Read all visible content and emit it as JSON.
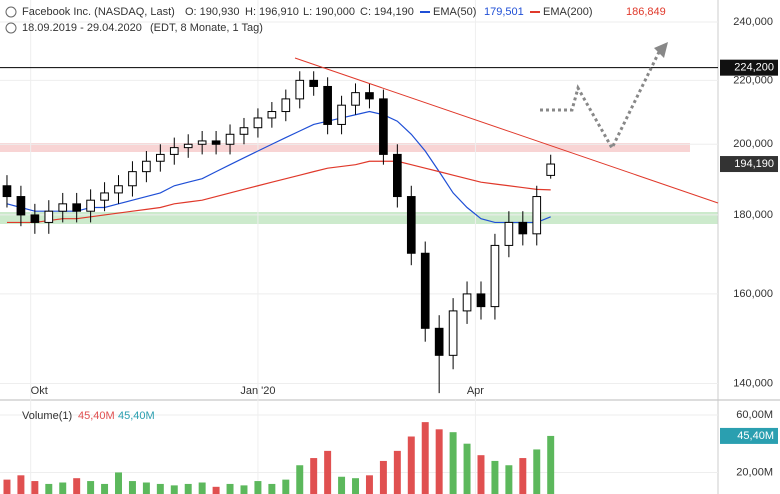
{
  "chart_data": {
    "type": "candlestick",
    "title": "Facebook Inc. (NASDAQ, Last)",
    "ohlc_labels": [
      "O: 190,930",
      "H: 196,910",
      "L: 190,000",
      "C: 194,190"
    ],
    "date_range": "18.09.2019 - 29.04.2020",
    "period_info": "(EDT, 8 Monate, 1 Tag)",
    "log_scale": true,
    "xlim": [
      -0.5,
      51
    ],
    "xticks": [
      {
        "value": 1.7,
        "label": "Okt"
      },
      {
        "value": 18,
        "label": "Jan '20"
      },
      {
        "value": 33.6,
        "label": "Apr"
      }
    ],
    "ylim": [
      137,
      248
    ],
    "yticks": [
      {
        "value": 140,
        "label": "140,000"
      },
      {
        "value": 160,
        "label": "160,000"
      },
      {
        "value": 180,
        "label": "180,000"
      },
      {
        "value": 200,
        "label": "200,000"
      },
      {
        "value": 220,
        "label": "220,000"
      },
      {
        "value": 240,
        "label": "240,000"
      }
    ],
    "grid": true,
    "level": {
      "value": 224.2,
      "label": "224,200"
    },
    "last_label": "194,190",
    "open": [
      188,
      185,
      180,
      178,
      181,
      183,
      181,
      184,
      186,
      188,
      192,
      195,
      197,
      199,
      200,
      201,
      200,
      203,
      205,
      208,
      210,
      214,
      220,
      218,
      206,
      212,
      216,
      214,
      197,
      185,
      170,
      152,
      146,
      156,
      160,
      157,
      172,
      178,
      175,
      190.93
    ],
    "high": [
      191,
      188,
      183,
      184,
      186,
      186,
      187,
      189,
      191,
      195,
      198,
      200,
      202,
      203,
      204,
      204,
      206,
      208,
      211,
      213,
      217,
      223,
      223,
      221,
      215,
      219,
      219,
      217,
      200,
      188,
      173,
      155,
      159,
      163,
      163,
      175,
      181,
      181,
      188,
      196.91
    ],
    "low": [
      182,
      177,
      175,
      175,
      178,
      178,
      178,
      181,
      183,
      185,
      189,
      192,
      194,
      196,
      197,
      197,
      197,
      200,
      202,
      205,
      207,
      211,
      215,
      203,
      203,
      209,
      211,
      194,
      182,
      167,
      149,
      138,
      143,
      153,
      154,
      154,
      169,
      172,
      172,
      190
    ],
    "close": [
      185,
      180,
      178,
      181,
      183,
      181,
      184,
      186,
      188,
      192,
      195,
      197,
      199,
      200,
      201,
      200,
      203,
      205,
      208,
      210,
      214,
      220,
      218,
      206,
      212,
      216,
      214,
      197,
      185,
      170,
      152,
      146,
      156,
      160,
      157,
      172,
      178,
      175,
      185,
      194.19
    ],
    "series": [
      {
        "name": "EMA(50)",
        "color": "#1f4fd6",
        "last_label": "179,501",
        "values": [
          183,
          182,
          181,
          181,
          181,
          181,
          182,
          182,
          183,
          184,
          185,
          186,
          188,
          189,
          190,
          192,
          194,
          196,
          198,
          200,
          202,
          204,
          206,
          207,
          208,
          209,
          210,
          209,
          207,
          203,
          198,
          192,
          186,
          182,
          179,
          178,
          178,
          178,
          178,
          179.501
        ]
      },
      {
        "name": "EMA(200)",
        "color": "#e0392b",
        "last_label": "186,849",
        "values": [
          178,
          178,
          178,
          178.5,
          179,
          179,
          179.5,
          180,
          180.5,
          181,
          181.5,
          182,
          183,
          183.5,
          184,
          185,
          186,
          187,
          188,
          189,
          190,
          191,
          192,
          193,
          193.5,
          194,
          195,
          195,
          195,
          194,
          193,
          192,
          191,
          190,
          189,
          188.5,
          188,
          187.5,
          187,
          186.849
        ]
      }
    ],
    "volume": {
      "name": "Volume(1)",
      "legend_values": [
        "45,40M",
        "45,40M"
      ],
      "tag_label": "45,40M",
      "ylim": [
        5,
        69
      ],
      "yticks": [
        {
          "value": 20,
          "label": "20,00M"
        },
        {
          "value": 60,
          "label": "60,00M"
        }
      ],
      "up_color": "#5cb85c",
      "down_color": "#e05050",
      "values": [
        15,
        18,
        14,
        12,
        13,
        16,
        14,
        12,
        20,
        14,
        13,
        12,
        11,
        12,
        13,
        10,
        12,
        11,
        14,
        12,
        15,
        25,
        30,
        35,
        17,
        16,
        18,
        28,
        35,
        45,
        55,
        50,
        48,
        40,
        32,
        28,
        25,
        30,
        36,
        45.4
      ]
    }
  }
}
